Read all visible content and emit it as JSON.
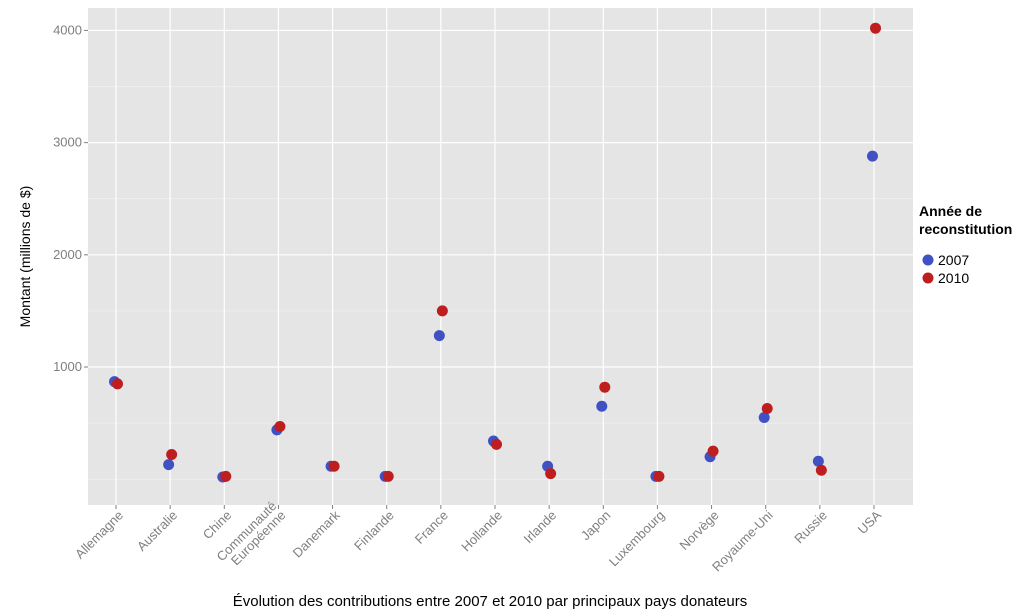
{
  "chart_data": {
    "type": "scatter",
    "title": "",
    "xlabel": "Évolution des contributions entre 2007 et 2010 par principaux pays donateurs",
    "ylabel": "Montant (millions de $)",
    "ylim": [
      -230,
      4200
    ],
    "yticks": [
      1000,
      2000,
      3000,
      4000
    ],
    "grid": true,
    "legend_position": "right",
    "legend_title": [
      "Année de",
      "reconstitution"
    ],
    "categories": [
      "Allemagne",
      "Australie",
      "Chine",
      "Communauté\nEuropéenne",
      "Danemark",
      "Finlande",
      "France",
      "Hollande",
      "Irlande",
      "Japon",
      "Luxembourg",
      "Norvège",
      "Royaume-Uni",
      "Russie",
      "USA"
    ],
    "series": [
      {
        "name": "2007",
        "color": "#3f51c3",
        "values": [
          870,
          130,
          20,
          440,
          115,
          25,
          1280,
          340,
          115,
          650,
          25,
          200,
          550,
          160,
          2880
        ]
      },
      {
        "name": "2010",
        "color": "#be1e1e",
        "values": [
          850,
          220,
          25,
          470,
          115,
          25,
          1500,
          310,
          50,
          820,
          25,
          250,
          630,
          80,
          4020
        ]
      }
    ]
  }
}
